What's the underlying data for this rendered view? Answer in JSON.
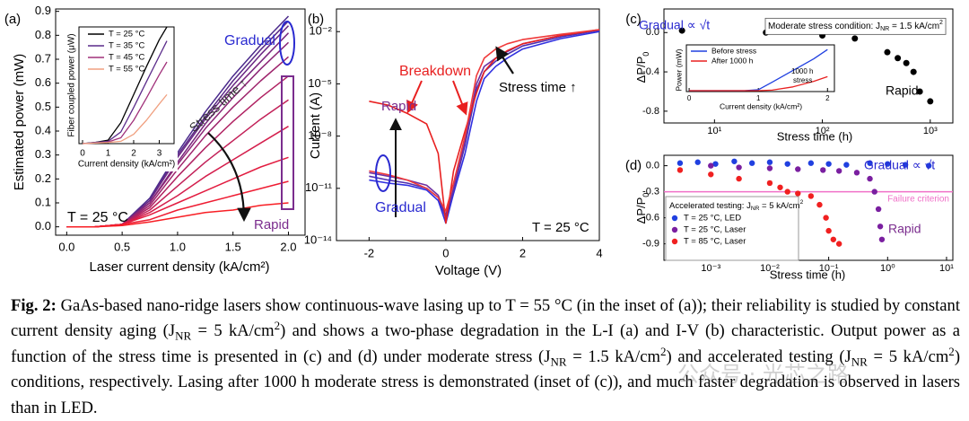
{
  "chart_data": [
    {
      "type": "line",
      "panel": "(a)",
      "xlabel": "Laser current density (kA/cm²)",
      "ylabel": "Estimated power (mW)",
      "xlim": [
        -0.1,
        2.15
      ],
      "ylim": [
        -0.035,
        0.91
      ],
      "xticks": [
        {
          "value": 0,
          "label": "0.0"
        },
        0.5,
        {
          "value": 1,
          "label": "1.0"
        },
        1.5,
        {
          "value": 2,
          "label": "2.0"
        }
      ],
      "yticks": [
        {
          "value": 0,
          "label": "0.0"
        },
        0.1,
        0.2,
        0.3,
        0.4,
        0.5,
        0.6,
        0.7,
        0.8,
        0.9
      ],
      "x": [
        0,
        0.25,
        0.5,
        0.75,
        1,
        1.25,
        1.5,
        1.75,
        2
      ],
      "series": [
        {
          "color": "#4b2a8c",
          "values": [
            0,
            0,
            0.01,
            0.12,
            0.31,
            0.48,
            0.63,
            0.76,
            0.88
          ]
        },
        {
          "color": "#5a2a88",
          "values": [
            0,
            0,
            0.01,
            0.11,
            0.3,
            0.46,
            0.61,
            0.74,
            0.86
          ]
        },
        {
          "color": "#6a2884",
          "values": [
            0,
            0,
            0.01,
            0.11,
            0.29,
            0.45,
            0.59,
            0.72,
            0.84
          ]
        },
        {
          "color": "#7a277e",
          "values": [
            0,
            0,
            0.01,
            0.1,
            0.27,
            0.43,
            0.57,
            0.69,
            0.81
          ]
        },
        {
          "color": "#8c2676",
          "values": [
            0,
            0,
            0.01,
            0.1,
            0.26,
            0.41,
            0.54,
            0.66,
            0.77
          ]
        },
        {
          "color": "#9e246c",
          "values": [
            0,
            0,
            0.01,
            0.09,
            0.24,
            0.38,
            0.5,
            0.61,
            0.71
          ]
        },
        {
          "color": "#b02262",
          "values": [
            0,
            0,
            0.01,
            0.08,
            0.21,
            0.33,
            0.44,
            0.54,
            0.63
          ]
        },
        {
          "color": "#c22058",
          "values": [
            0,
            0,
            0.01,
            0.07,
            0.17,
            0.27,
            0.36,
            0.45,
            0.53
          ]
        },
        {
          "color": "#d41e4c",
          "values": [
            0,
            0,
            0.01,
            0.06,
            0.13,
            0.21,
            0.28,
            0.35,
            0.42
          ]
        },
        {
          "color": "#e21c40",
          "values": [
            0,
            0,
            0.01,
            0.05,
            0.1,
            0.15,
            0.2,
            0.25,
            0.29
          ]
        },
        {
          "color": "#ee1c32",
          "values": [
            0,
            0,
            0.01,
            0.03,
            0.07,
            0.1,
            0.13,
            0.16,
            0.19
          ]
        },
        {
          "color": "#f81e24",
          "values": [
            0,
            0,
            0.005,
            0.02,
            0.04,
            0.06,
            0.07,
            0.09,
            0.1
          ]
        }
      ],
      "annotations": [
        {
          "text": "Gradual",
          "color": "#2a2ad0"
        },
        {
          "text": "Stress time ↑",
          "color": "#333333"
        },
        {
          "text": "Rapid",
          "color": "#7b2d8e"
        },
        {
          "text": "T = 25 °C",
          "color": "#000000"
        }
      ]
    },
    {
      "type": "line",
      "xlabel": "Current density (kA/cm²)",
      "ylabel": "Fiber coupled power (μW)",
      "xlim": [
        -0.14,
        3.58
      ],
      "ylim": [
        0,
        10
      ],
      "xticks": [
        0,
        1,
        2,
        3
      ],
      "x": [
        0,
        0.5,
        1,
        1.5,
        2,
        2.5,
        3,
        3.3
      ],
      "series": [
        {
          "name": "T = 25 °C",
          "color": "#000000",
          "values": [
            0,
            0.1,
            0.3,
            1.8,
            4.2,
            6.6,
            8.9,
            10
          ]
        },
        {
          "name": "T = 35 °C",
          "color": "#5a2a8a",
          "values": [
            0,
            0.1,
            0.2,
            1.0,
            3.1,
            5.3,
            7.5,
            8.8
          ]
        },
        {
          "name": "T = 45 °C",
          "color": "#a0307a",
          "values": [
            0,
            0.05,
            0.15,
            0.5,
            2.0,
            3.9,
            5.9,
            7.0
          ]
        },
        {
          "name": "T = 55 °C",
          "color": "#f0a080",
          "values": [
            0,
            0.05,
            0.1,
            0.2,
            0.8,
            2.0,
            3.4,
            4.2
          ]
        }
      ]
    },
    {
      "type": "line",
      "panel": "(b)",
      "xlabel": "Voltage (V)",
      "ylabel": "Current (A)",
      "yscale": "log",
      "xlim": [
        -2.85,
        4.0
      ],
      "ylim": [
        1e-14,
        0.2
      ],
      "xticks": [
        -2,
        0,
        2,
        4
      ],
      "yticks": [
        {
          "value": 1e-14,
          "label": "10⁻¹⁴"
        },
        {
          "value": 1e-11,
          "label": "10⁻¹¹"
        },
        {
          "value": 1e-08,
          "label": "10⁻⁸"
        },
        {
          "value": 1e-05,
          "label": "10⁻⁵"
        },
        {
          "value": 0.01,
          "label": "10⁻²"
        }
      ],
      "x": [
        -2,
        -1.5,
        -1,
        -0.5,
        -0.2,
        0,
        0.2,
        0.5,
        0.8,
        1.0,
        1.3,
        1.6,
        2,
        3,
        4
      ],
      "series": [
        {
          "color": "#3030e0",
          "values": [
            3e-11,
            2e-11,
            1.5e-11,
            8e-12,
            2e-12,
            1e-13,
            5e-12,
            1e-09,
            1e-06,
            2e-05,
            0.0001,
            0.0003,
            0.001,
            0.004,
            0.01
          ]
        },
        {
          "color": "#5030b0",
          "values": [
            5e-11,
            3e-11,
            2e-11,
            1e-11,
            3e-12,
            2e-13,
            8e-12,
            3e-09,
            5e-06,
            5e-05,
            0.0002,
            0.0005,
            0.0015,
            0.005,
            0.012
          ]
        },
        {
          "color": "#7030a0",
          "values": [
            8e-11,
            5e-11,
            3e-11,
            1.5e-11,
            4e-12,
            3e-13,
            1e-11,
            5e-09,
            1e-05,
            0.0001,
            0.0003,
            0.0007,
            0.002,
            0.006,
            0.013
          ]
        },
        {
          "color": "#e82020",
          "values": [
            1e-06,
            6e-07,
            2e-07,
            5e-08,
            1e-09,
            1e-13,
            1e-10,
            2e-08,
            3e-06,
            5e-05,
            0.0003,
            0.0008,
            0.002,
            0.006,
            0.013
          ]
        },
        {
          "color": "#f03a3a",
          "values": [
            1e-10,
            6e-11,
            3e-11,
            1e-11,
            3e-12,
            5e-13,
            2e-11,
            1e-08,
            3e-05,
            0.0003,
            0.001,
            0.002,
            0.0035,
            0.007,
            0.013
          ]
        }
      ],
      "annotations": [
        {
          "text": "Rapid",
          "color": "#7b2d8e"
        },
        {
          "text": "Breakdown",
          "color": "#e82020"
        },
        {
          "text": "Stress time ↑",
          "color": "#000000"
        },
        {
          "text": "Gradual",
          "color": "#2a2ad0"
        },
        {
          "text": "T = 25 °C",
          "color": "#000000"
        }
      ]
    },
    {
      "type": "scatter",
      "panel": "(c)",
      "xlabel": "Stress time (h)",
      "ylabel": [
        {
          "text": "ΔP/P"
        },
        {
          "text": "0",
          "style": "sub"
        }
      ],
      "xscale": "log",
      "xlim": [
        3.4,
        1620
      ],
      "ylim": [
        -0.92,
        0.24
      ],
      "xticks": [
        {
          "value": 10,
          "label": "10¹"
        },
        {
          "value": 100,
          "label": "10²"
        },
        {
          "value": 1000,
          "label": "10³"
        }
      ],
      "yticks": [
        {
          "value": 0,
          "label": "0.0"
        },
        -0.4,
        -0.8
      ],
      "series": [
        {
          "color": "#000000",
          "x": [
            5,
            30,
            100,
            200,
            400,
            500,
            600,
            700,
            800,
            1000
          ],
          "values": [
            0.02,
            0.0,
            -0.03,
            -0.06,
            -0.2,
            -0.26,
            -0.31,
            -0.4,
            -0.6,
            -0.7
          ]
        }
      ],
      "annotations": [
        {
          "text": "Gradual ∝ √t",
          "color": "#2a2ad0"
        },
        {
          "runs": [
            {
              "text": "Moderate stress condition: J"
            },
            {
              "text": "NR",
              "style": "sub"
            },
            {
              "text": " = 1.5 kA/cm"
            },
            {
              "text": "2",
              "style": "sup"
            }
          ],
          "color": "#000000",
          "boxed": true
        },
        {
          "text": "Rapid",
          "color": "#000000"
        }
      ]
    },
    {
      "type": "line",
      "xlabel": "Current density (kA/cm²)",
      "ylabel": "Power (mW)",
      "xlim": [
        -0.04,
        2.1
      ],
      "ylim": [
        0,
        1
      ],
      "xticks": [
        0,
        1,
        2
      ],
      "x": [
        0,
        0.5,
        0.8,
        1,
        1.2,
        1.5,
        1.8,
        2
      ],
      "series": [
        {
          "name": "Before stress",
          "color": "#2040e0",
          "values": [
            0.02,
            0.02,
            0.02,
            0.04,
            0.2,
            0.45,
            0.7,
            0.9
          ]
        },
        {
          "name": "After 1000 h",
          "color": "#e82020",
          "values": [
            0.02,
            0.02,
            0.02,
            0.02,
            0.03,
            0.1,
            0.22,
            0.32
          ]
        }
      ],
      "annotations": [
        {
          "text": "1000 h",
          "color": "#000000"
        },
        {
          "text": "stress",
          "color": "#000000"
        }
      ]
    },
    {
      "type": "scatter",
      "panel": "(d)",
      "xlabel": "Stress time (h)",
      "ylabel": [
        {
          "text": "ΔP/P"
        },
        {
          "text": "0",
          "style": "sub"
        }
      ],
      "xscale": "log",
      "xlim": [
        0.00016,
        12.8
      ],
      "ylim": [
        -1.09,
        0.12
      ],
      "xticks": [
        {
          "value": 0.001,
          "label": "10⁻³"
        },
        {
          "value": 0.01,
          "label": "10⁻²"
        },
        {
          "value": 0.1,
          "label": "10⁻¹"
        },
        {
          "value": 1,
          "label": "10⁰"
        },
        {
          "value": 10,
          "label": "10¹"
        }
      ],
      "yticks": [
        {
          "value": 0,
          "label": "0.0"
        },
        -0.3,
        -0.6,
        -0.9
      ],
      "reference_line": {
        "value": -0.3,
        "label": "Failure criterion",
        "color": "#f070c8"
      },
      "legend_title": [
        {
          "text": "Accelerated testing: J"
        },
        {
          "text": "NR",
          "style": "sub"
        },
        {
          "text": " = 5 kA/cm"
        },
        {
          "text": "2",
          "style": "sup"
        }
      ],
      "series": [
        {
          "name": "T = 25 °C, LED",
          "color": "#2040e0",
          "x": [
            0.0003,
            0.0006,
            0.0012,
            0.0025,
            0.005,
            0.01,
            0.02,
            0.05,
            0.1,
            0.2,
            0.5,
            1,
            2,
            5
          ],
          "values": [
            0.03,
            0.04,
            0.02,
            0.05,
            0.03,
            0.04,
            0.02,
            0.03,
            0.02,
            0.01,
            0.03,
            0.02,
            0.01,
            0.0
          ]
        },
        {
          "name": "T = 25 °C, Laser",
          "color": "#7a1fa0",
          "x": [
            0.001,
            0.003,
            0.01,
            0.03,
            0.08,
            0.15,
            0.3,
            0.5,
            0.6,
            0.7,
            0.75,
            0.8
          ],
          "values": [
            0,
            -0.02,
            -0.03,
            -0.04,
            -0.05,
            -0.06,
            -0.08,
            -0.15,
            -0.3,
            -0.5,
            -0.7,
            -0.85
          ]
        },
        {
          "name": "T = 85 °C, Laser",
          "color": "#f02020",
          "x": [
            0.0003,
            0.001,
            0.003,
            0.01,
            0.015,
            0.02,
            0.03,
            0.05,
            0.07,
            0.09,
            0.1,
            0.12,
            0.15
          ],
          "values": [
            -0.05,
            -0.1,
            -0.15,
            -0.2,
            -0.25,
            -0.3,
            -0.32,
            -0.35,
            -0.45,
            -0.6,
            -0.75,
            -0.85,
            -0.9
          ]
        }
      ],
      "annotations": [
        {
          "text": "Gradual ∝ √t",
          "color": "#2a2ad0"
        },
        {
          "text": "Rapid",
          "color": "#7b2d8e"
        }
      ]
    }
  ],
  "caption": [
    {
      "text": "Fig. 2:",
      "style": "b"
    },
    {
      "text": " GaAs-based nano-ridge lasers show continuous-wave lasing up to T = 55 °C (in the inset of (a)); their reliability is studied by constant current density aging (J"
    },
    {
      "text": "NR",
      "style": "sub"
    },
    {
      "text": " = 5 kA/cm"
    },
    {
      "text": "2",
      "style": "sup"
    },
    {
      "text": ") and shows a two-phase degradation in the L-I (a) and I-V (b) characteristic. Output power as a function of the stress time is presented in (c) and (d) under moderate stress (J"
    },
    {
      "text": "NR",
      "style": "sub"
    },
    {
      "text": " = 1.5 kA/cm"
    },
    {
      "text": "2",
      "style": "sup"
    },
    {
      "text": ") and accelerated testing (J"
    },
    {
      "text": "NR",
      "style": "sub"
    },
    {
      "text": " = 5 kA/cm"
    },
    {
      "text": "2",
      "style": "sup"
    },
    {
      "text": ") conditions, respectively. Lasing after 1000 h moderate stress is demonstrated (inset of (c)), and much faster degradation is observed in lasers than in LED."
    }
  ],
  "watermark": "公众号 · 光芯之路"
}
